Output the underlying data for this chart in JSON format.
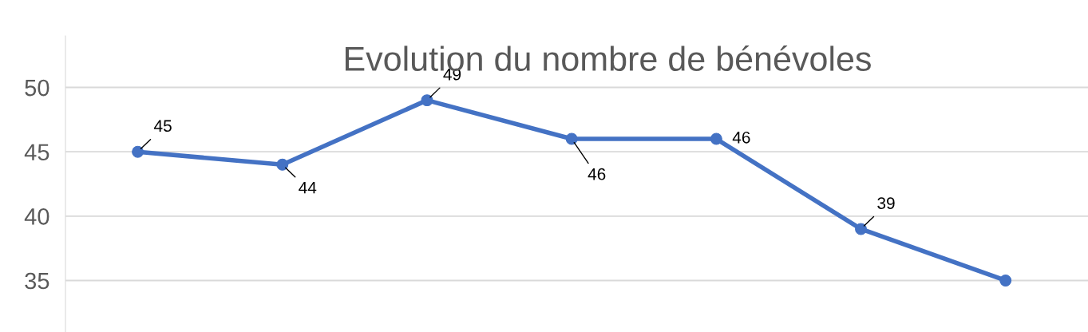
{
  "chart_data": {
    "type": "line",
    "title": "Evolution du nombre de bénévoles",
    "categories": [
      null,
      null,
      null,
      null,
      null,
      null,
      null
    ],
    "series": [
      {
        "color": "#4472c4",
        "values": [
          45,
          44,
          49,
          46,
          46,
          39,
          35
        ],
        "value_labels": [
          "45",
          "44",
          "49",
          "46",
          "46",
          "39",
          null
        ]
      }
    ],
    "ylim": [
      31,
      54
    ],
    "yticks": [
      35,
      40,
      45,
      50
    ],
    "grid": "y",
    "marker": "circle",
    "line_style": "solid",
    "legend": false
  }
}
